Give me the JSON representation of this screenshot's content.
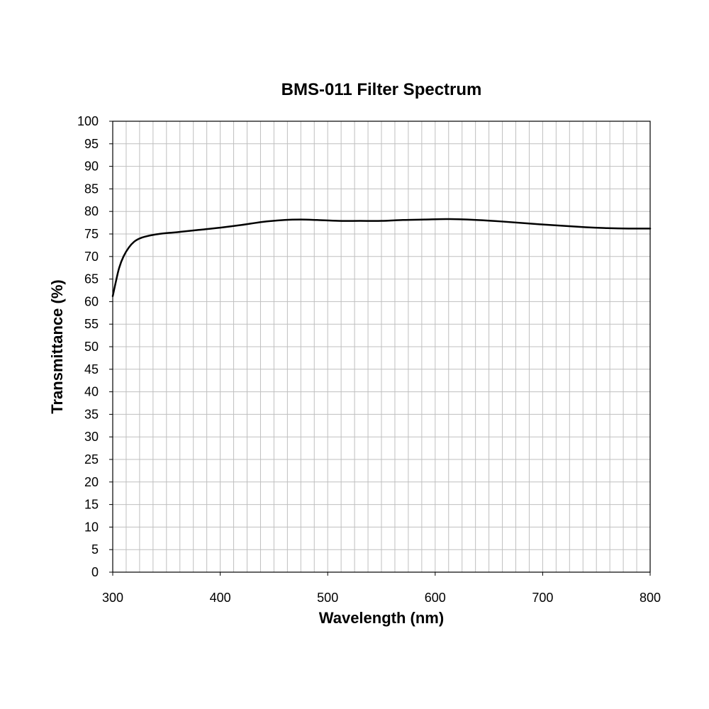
{
  "chart_data": {
    "type": "line",
    "title": "BMS-011 Filter Spectrum",
    "xlabel": "Wavelength (nm)",
    "ylabel": "Transmittance (%)",
    "xlim": [
      300,
      800
    ],
    "ylim": [
      0,
      100
    ],
    "x_ticks": [
      300,
      400,
      500,
      600,
      700,
      800
    ],
    "x_tick_labels": [
      "300",
      "400",
      "500",
      "600",
      "700",
      "800"
    ],
    "x_minor_step": 12.5,
    "y_ticks": [
      0,
      5,
      10,
      15,
      20,
      25,
      30,
      35,
      40,
      45,
      50,
      55,
      60,
      65,
      70,
      75,
      80,
      85,
      90,
      95,
      100
    ],
    "y_tick_labels": [
      "0",
      "5",
      "10",
      "15",
      "20",
      "25",
      "30",
      "35",
      "40",
      "45",
      "50",
      "55",
      "60",
      "65",
      "70",
      "75",
      "80",
      "85",
      "90",
      "95",
      "100"
    ],
    "grid": true,
    "legend": "none",
    "series": [
      {
        "color": "#000000",
        "x": [
          300,
          303,
          306,
          310,
          315,
          320,
          325,
          330,
          340,
          350,
          360,
          380,
          400,
          420,
          440,
          460,
          475,
          490,
          510,
          530,
          550,
          570,
          590,
          610,
          630,
          660,
          700,
          740,
          760,
          780,
          800
        ],
        "y": [
          61.2,
          64.5,
          67.5,
          70.0,
          72.0,
          73.3,
          74.0,
          74.4,
          74.9,
          75.2,
          75.4,
          75.9,
          76.4,
          77.0,
          77.7,
          78.1,
          78.2,
          78.1,
          77.9,
          77.9,
          77.9,
          78.1,
          78.2,
          78.3,
          78.2,
          77.8,
          77.1,
          76.5,
          76.3,
          76.2,
          76.2
        ]
      }
    ]
  }
}
